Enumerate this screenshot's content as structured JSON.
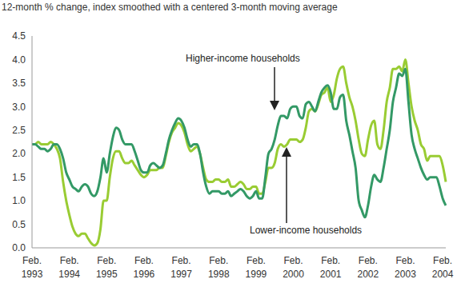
{
  "chart_data": {
    "type": "line",
    "title": "12-month % change, index smoothed with a centered 3-month moving average",
    "categories": [
      "Feb. 1993",
      null,
      null,
      null,
      null,
      null,
      null,
      null,
      null,
      null,
      null,
      null,
      "Feb. 1994",
      null,
      null,
      null,
      null,
      null,
      null,
      null,
      null,
      null,
      null,
      null,
      "Feb. 1995",
      null,
      null,
      null,
      null,
      null,
      null,
      null,
      null,
      null,
      null,
      null,
      "Feb. 1996",
      null,
      null,
      null,
      null,
      null,
      null,
      null,
      null,
      null,
      null,
      null,
      "Feb. 1997",
      null,
      null,
      null,
      null,
      null,
      null,
      null,
      null,
      null,
      null,
      null,
      "Feb. 1998",
      null,
      null,
      null,
      null,
      null,
      null,
      null,
      null,
      null,
      null,
      null,
      "Feb. 1999",
      null,
      null,
      null,
      null,
      null,
      null,
      null,
      null,
      null,
      null,
      null,
      "Feb. 2000",
      null,
      null,
      null,
      null,
      null,
      null,
      null,
      null,
      null,
      null,
      null,
      "Feb. 2001",
      null,
      null,
      null,
      null,
      null,
      null,
      null,
      null,
      null,
      null,
      null,
      "Feb. 2002",
      null,
      null,
      null,
      null,
      null,
      null,
      null,
      null,
      null,
      null,
      null,
      "Feb. 2003",
      null,
      null,
      null,
      null,
      null,
      null,
      null,
      null,
      null,
      null,
      null,
      "Feb. 2004",
      null
    ],
    "series": [
      {
        "name": "Higher-income households",
        "color": "#339966",
        "values": [
          2.2,
          2.2,
          2.15,
          2.1,
          2.1,
          2.05,
          2.1,
          2.2,
          2.2,
          2.1,
          1.9,
          1.6,
          1.45,
          1.3,
          1.25,
          1.2,
          1.3,
          1.35,
          1.3,
          1.15,
          1.1,
          1.2,
          1.5,
          1.9,
          1.6,
          2.0,
          2.35,
          2.55,
          2.5,
          2.3,
          2.2,
          2.2,
          2.2,
          2.05,
          1.85,
          1.65,
          1.6,
          1.6,
          1.75,
          1.8,
          1.75,
          1.7,
          1.75,
          2.0,
          2.3,
          2.5,
          2.65,
          2.75,
          2.7,
          2.55,
          2.3,
          2.15,
          2.2,
          2.2,
          2.0,
          1.6,
          1.3,
          1.15,
          1.2,
          1.2,
          1.2,
          1.15,
          1.15,
          1.2,
          1.1,
          1.15,
          1.2,
          1.25,
          1.2,
          1.1,
          1.05,
          1.1,
          1.2,
          1.05,
          1.05,
          1.5,
          2.0,
          2.1,
          2.3,
          2.6,
          2.8,
          2.8,
          2.75,
          2.95,
          3.0,
          3.0,
          2.8,
          2.75,
          3.05,
          3.1,
          3.0,
          2.9,
          3.1,
          3.3,
          3.4,
          3.45,
          3.3,
          2.95,
          2.95,
          3.2,
          3.25,
          2.7,
          2.4,
          2.05,
          1.7,
          1.0,
          0.8,
          0.65,
          0.9,
          1.3,
          1.55,
          1.45,
          1.4,
          1.7,
          2.1,
          2.5,
          3.1,
          3.4,
          3.7,
          3.65,
          3.8,
          3.1,
          2.4,
          2.1,
          1.9,
          1.7,
          1.55,
          1.45,
          1.5,
          1.5,
          1.5,
          1.3,
          1.05,
          0.9
        ]
      },
      {
        "name": "Lower-income households",
        "color": "#99cc33",
        "values": [
          2.2,
          2.2,
          2.25,
          2.2,
          2.2,
          2.2,
          2.25,
          2.2,
          2.1,
          1.9,
          1.4,
          1.0,
          0.7,
          0.45,
          0.3,
          0.25,
          0.3,
          0.3,
          0.2,
          0.1,
          0.05,
          0.1,
          0.4,
          1.0,
          1.0,
          1.5,
          1.9,
          2.05,
          2.05,
          1.9,
          1.8,
          1.8,
          1.85,
          1.75,
          1.65,
          1.55,
          1.5,
          1.55,
          1.65,
          1.65,
          1.65,
          1.7,
          1.7,
          1.95,
          2.25,
          2.45,
          2.55,
          2.65,
          2.6,
          2.45,
          2.2,
          2.05,
          2.1,
          2.15,
          2.0,
          1.7,
          1.45,
          1.4,
          1.4,
          1.45,
          1.45,
          1.4,
          1.4,
          1.45,
          1.3,
          1.3,
          1.35,
          1.4,
          1.35,
          1.25,
          1.25,
          1.3,
          1.3,
          1.15,
          1.15,
          1.4,
          1.7,
          1.7,
          1.8,
          2.1,
          2.2,
          2.15,
          2.2,
          2.3,
          2.3,
          2.3,
          2.25,
          2.3,
          2.55,
          2.9,
          2.95,
          2.9,
          3.05,
          3.25,
          3.3,
          3.4,
          3.1,
          3.25,
          3.6,
          3.8,
          3.85,
          3.5,
          3.2,
          3.0,
          2.7,
          2.3,
          2.0,
          1.95,
          2.3,
          2.6,
          2.7,
          2.2,
          2.1,
          2.5,
          3.1,
          3.4,
          3.8,
          3.8,
          3.85,
          3.75,
          4.0,
          3.5,
          3.0,
          2.7,
          2.5,
          2.2,
          2.1,
          1.85,
          1.95,
          1.95,
          1.95,
          1.95,
          1.75,
          1.4
        ]
      }
    ],
    "ylim": [
      0,
      4.5
    ],
    "yticks": [
      {
        "value": 0,
        "label": "0.0"
      },
      {
        "value": 0.5,
        "label": "0.5"
      },
      {
        "value": 1,
        "label": "1.0"
      },
      {
        "value": 1.5,
        "label": "1.5"
      },
      {
        "value": 2,
        "label": "2.0"
      },
      {
        "value": 2.5,
        "label": "2.5"
      },
      {
        "value": 3,
        "label": "3.0"
      },
      {
        "value": 3.5,
        "label": "3.5"
      },
      {
        "value": 4,
        "label": "4.0"
      },
      {
        "value": 4.5,
        "label": "4.5"
      }
    ],
    "grid": false
  }
}
